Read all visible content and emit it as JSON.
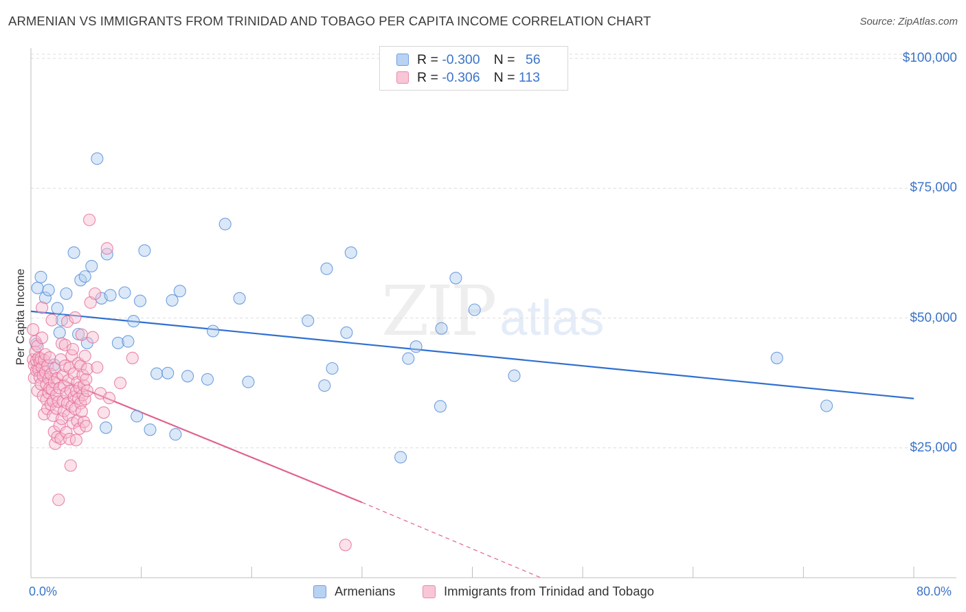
{
  "title": "ARMENIAN VS IMMIGRANTS FROM TRINIDAD AND TOBAGO PER CAPITA INCOME CORRELATION CHART",
  "source": "Source: ZipAtlas.com",
  "watermark": {
    "zip": "ZIP",
    "atlas": "atlas"
  },
  "legend_top": [
    {
      "r_label": "R = ",
      "r_value": "-0.300",
      "n_label": "N = ",
      "n_value": "56"
    },
    {
      "r_label": "R = ",
      "r_value": "-0.306",
      "n_label": "N = ",
      "n_value": "113"
    }
  ],
  "legend_bottom": [
    "Armenians",
    "Immigrants from Trinidad and Tobago"
  ],
  "chart_data": {
    "type": "scatter",
    "title": "ARMENIAN VS IMMIGRANTS FROM TRINIDAD AND TOBAGO PER CAPITA INCOME CORRELATION CHART",
    "xlabel": "",
    "ylabel": "Per Capita Income",
    "xlim": [
      0,
      80
    ],
    "ylim": [
      0,
      102000
    ],
    "x_tick_labels": [
      "0.0%",
      "80.0%"
    ],
    "y_ticks": [
      25000,
      50000,
      75000,
      100000
    ],
    "y_tick_labels": [
      "$25,000",
      "$50,000",
      "$75,000",
      "$100,000"
    ],
    "grid": true,
    "legend_position": "top-center",
    "series": [
      {
        "name": "Armenians",
        "color": "#5b8fd8",
        "fill": "#aecbf0",
        "r": -0.3,
        "n": 56,
        "trend": {
          "x": [
            0,
            80
          ],
          "y": [
            51300,
            34500
          ],
          "dashed_to": null
        },
        "points": [
          [
            0.6,
            55800
          ],
          [
            0.9,
            57900
          ],
          [
            1.3,
            53900
          ],
          [
            1.6,
            55400
          ],
          [
            2.4,
            51900
          ],
          [
            2.6,
            47200
          ],
          [
            2.8,
            49600
          ],
          [
            3.2,
            54700
          ],
          [
            3.9,
            62600
          ],
          [
            4.3,
            46900
          ],
          [
            4.5,
            57300
          ],
          [
            4.9,
            58000
          ],
          [
            5.1,
            45200
          ],
          [
            5.5,
            60000
          ],
          [
            6.0,
            80700
          ],
          [
            6.4,
            53800
          ],
          [
            6.8,
            28900
          ],
          [
            6.9,
            62300
          ],
          [
            7.2,
            54400
          ],
          [
            7.9,
            45200
          ],
          [
            8.5,
            54900
          ],
          [
            8.8,
            45500
          ],
          [
            9.3,
            49400
          ],
          [
            9.6,
            31100
          ],
          [
            9.9,
            53300
          ],
          [
            10.3,
            63000
          ],
          [
            10.8,
            28500
          ],
          [
            11.4,
            39300
          ],
          [
            12.4,
            39400
          ],
          [
            12.8,
            53400
          ],
          [
            13.1,
            27600
          ],
          [
            13.5,
            55200
          ],
          [
            14.2,
            38800
          ],
          [
            16.0,
            38200
          ],
          [
            16.5,
            47500
          ],
          [
            17.6,
            68100
          ],
          [
            18.9,
            53800
          ],
          [
            19.7,
            37700
          ],
          [
            25.1,
            49500
          ],
          [
            26.6,
            37000
          ],
          [
            26.8,
            59500
          ],
          [
            27.3,
            40300
          ],
          [
            28.6,
            47200
          ],
          [
            29.0,
            62600
          ],
          [
            33.5,
            23200
          ],
          [
            34.2,
            42200
          ],
          [
            34.9,
            44500
          ],
          [
            37.1,
            33000
          ],
          [
            37.2,
            48000
          ],
          [
            38.5,
            57700
          ],
          [
            40.2,
            51600
          ],
          [
            43.8,
            38900
          ],
          [
            67.6,
            42300
          ],
          [
            72.1,
            33100
          ],
          [
            0.5,
            45000
          ],
          [
            2.1,
            41000
          ]
        ]
      },
      {
        "name": "Immigrants from Trinidad and Tobago",
        "color": "#e4729a",
        "fill": "#f6bcd0",
        "r": -0.306,
        "n": 113,
        "trend": {
          "x": [
            0,
            30.0
          ],
          "y": [
            40500,
            14500
          ],
          "dashed_to": [
            46.2,
            0
          ]
        },
        "points": [
          [
            0.2,
            47800
          ],
          [
            0.2,
            42000
          ],
          [
            0.3,
            40900
          ],
          [
            0.3,
            38500
          ],
          [
            0.4,
            45500
          ],
          [
            0.4,
            43500
          ],
          [
            0.5,
            41800
          ],
          [
            0.5,
            39900
          ],
          [
            0.6,
            36000
          ],
          [
            0.6,
            44600
          ],
          [
            0.7,
            42300
          ],
          [
            0.7,
            40000
          ],
          [
            0.8,
            38600
          ],
          [
            0.8,
            41500
          ],
          [
            0.9,
            37300
          ],
          [
            0.9,
            42200
          ],
          [
            1.0,
            40500
          ],
          [
            1.0,
            46200
          ],
          [
            1.1,
            38900
          ],
          [
            1.1,
            35000
          ],
          [
            1.2,
            41900
          ],
          [
            1.2,
            31500
          ],
          [
            1.3,
            39600
          ],
          [
            1.3,
            43000
          ],
          [
            1.4,
            37200
          ],
          [
            1.4,
            34300
          ],
          [
            1.5,
            40800
          ],
          [
            1.5,
            32500
          ],
          [
            1.6,
            38300
          ],
          [
            1.6,
            35600
          ],
          [
            1.7,
            36500
          ],
          [
            1.7,
            42400
          ],
          [
            1.8,
            33400
          ],
          [
            1.8,
            39200
          ],
          [
            1.9,
            36300
          ],
          [
            1.9,
            49600
          ],
          [
            2.0,
            31200
          ],
          [
            2.0,
            34000
          ],
          [
            2.1,
            37700
          ],
          [
            2.1,
            28100
          ],
          [
            2.2,
            25800
          ],
          [
            2.2,
            40300
          ],
          [
            2.3,
            32600
          ],
          [
            2.3,
            35200
          ],
          [
            2.4,
            27100
          ],
          [
            2.4,
            38400
          ],
          [
            2.5,
            15000
          ],
          [
            2.5,
            33900
          ],
          [
            2.6,
            29300
          ],
          [
            2.6,
            36500
          ],
          [
            2.7,
            42000
          ],
          [
            2.7,
            26800
          ],
          [
            2.8,
            45100
          ],
          [
            2.8,
            30600
          ],
          [
            2.9,
            34000
          ],
          [
            2.9,
            39000
          ],
          [
            3.0,
            37000
          ],
          [
            3.0,
            32100
          ],
          [
            3.1,
            44800
          ],
          [
            3.1,
            40800
          ],
          [
            3.2,
            28000
          ],
          [
            3.2,
            35500
          ],
          [
            3.3,
            49300
          ],
          [
            3.3,
            33600
          ],
          [
            3.4,
            31300
          ],
          [
            3.4,
            38000
          ],
          [
            3.5,
            26700
          ],
          [
            3.5,
            40400
          ],
          [
            3.6,
            21600
          ],
          [
            3.6,
            36000
          ],
          [
            3.7,
            33000
          ],
          [
            3.7,
            42800
          ],
          [
            3.8,
            29800
          ],
          [
            3.8,
            44000
          ],
          [
            3.9,
            34800
          ],
          [
            3.9,
            39300
          ],
          [
            4.0,
            50100
          ],
          [
            4.0,
            32500
          ],
          [
            4.1,
            26500
          ],
          [
            4.1,
            35900
          ],
          [
            4.2,
            37600
          ],
          [
            4.2,
            30200
          ],
          [
            4.3,
            34500
          ],
          [
            4.3,
            41300
          ],
          [
            4.4,
            28700
          ],
          [
            4.4,
            36600
          ],
          [
            4.5,
            40800
          ],
          [
            4.5,
            33600
          ],
          [
            4.6,
            32000
          ],
          [
            4.6,
            46800
          ],
          [
            4.7,
            35200
          ],
          [
            4.7,
            39000
          ],
          [
            4.8,
            30000
          ],
          [
            4.8,
            37000
          ],
          [
            4.9,
            42700
          ],
          [
            4.9,
            34400
          ],
          [
            5.0,
            29200
          ],
          [
            5.0,
            38200
          ],
          [
            5.1,
            40200
          ],
          [
            5.1,
            36000
          ],
          [
            5.3,
            68900
          ],
          [
            5.4,
            53000
          ],
          [
            5.6,
            46300
          ],
          [
            5.8,
            54700
          ],
          [
            6.0,
            40500
          ],
          [
            6.3,
            35500
          ],
          [
            6.6,
            31800
          ],
          [
            6.9,
            63400
          ],
          [
            7.1,
            34600
          ],
          [
            8.1,
            37500
          ],
          [
            9.2,
            42300
          ],
          [
            1.0,
            52000
          ],
          [
            28.5,
            6300
          ]
        ]
      }
    ]
  }
}
